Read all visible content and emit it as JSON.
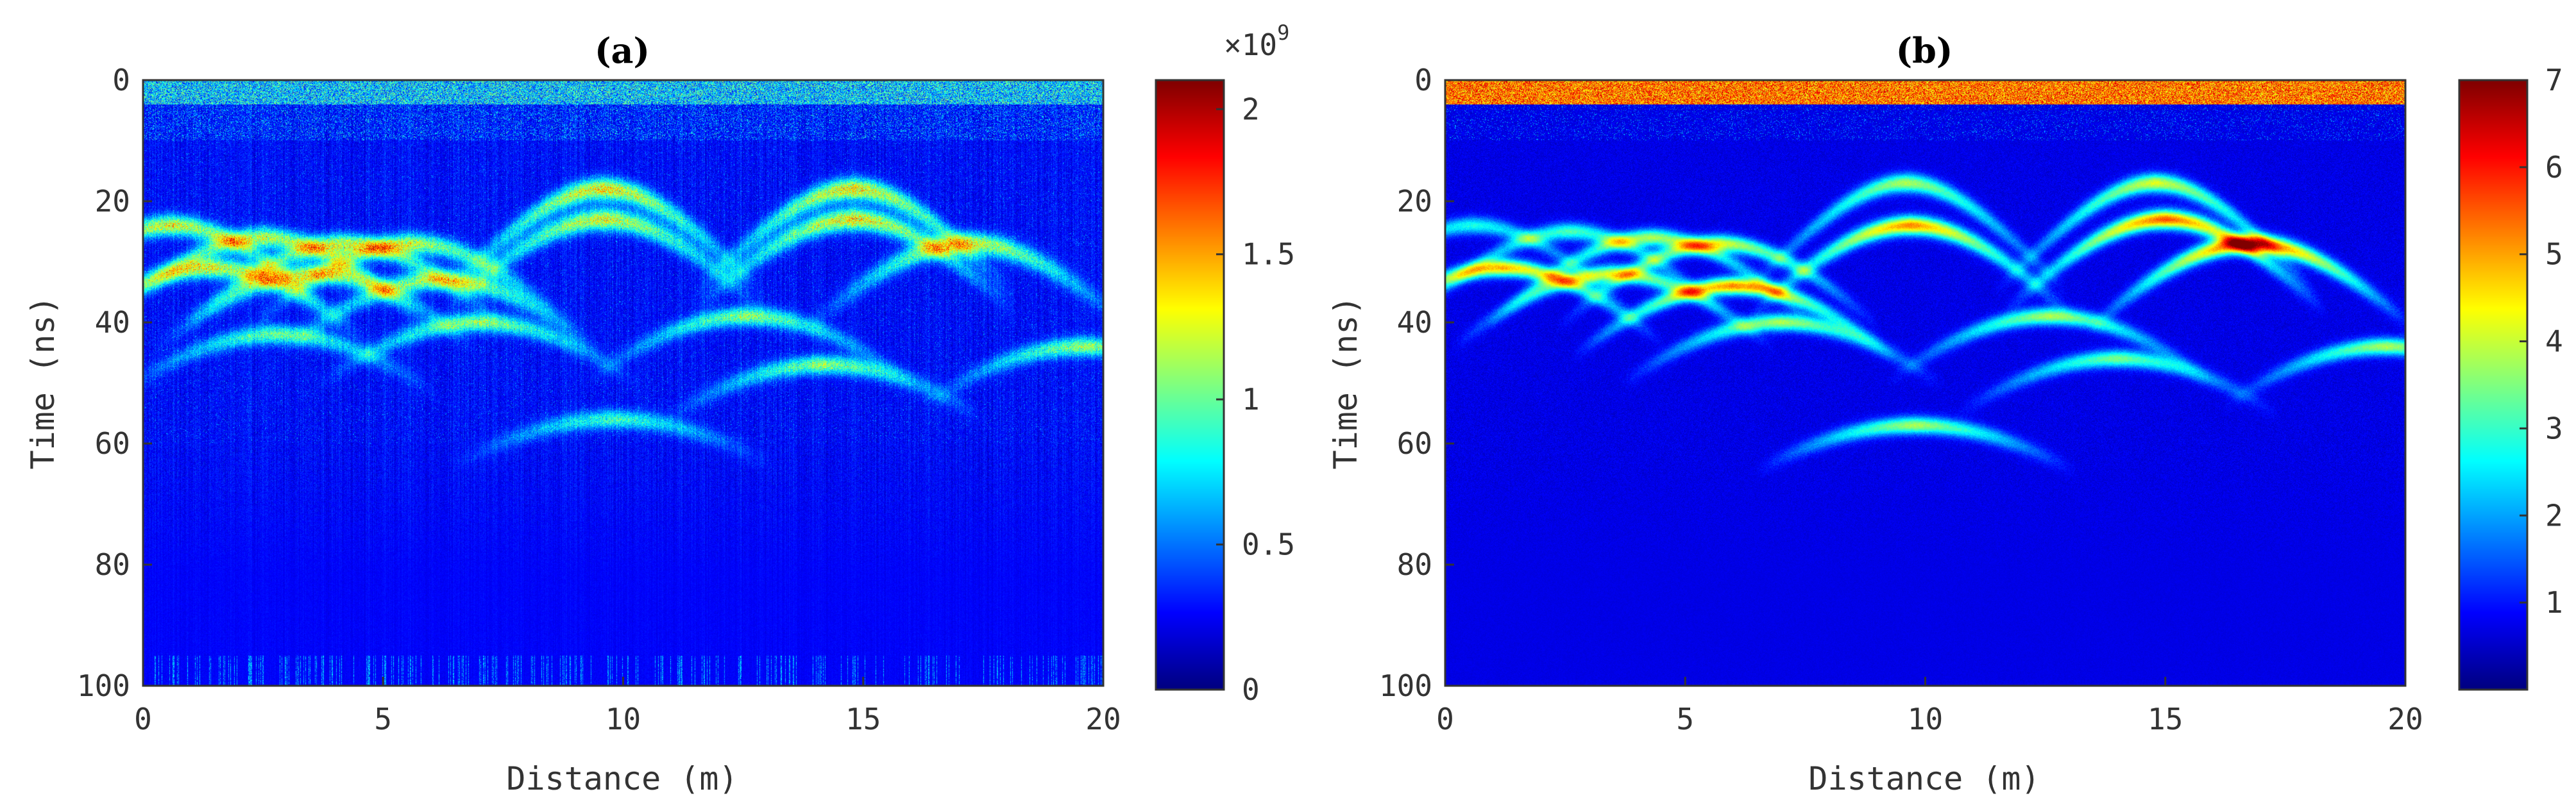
{
  "chart_data": [
    {
      "type": "heatmap",
      "panel": "a",
      "title": "(a)",
      "xlabel": "Distance (m)",
      "ylabel": "Time (ns)",
      "xlim": [
        0,
        20
      ],
      "ylim": [
        0,
        100
      ],
      "y_reversed": true,
      "xticks": [
        0,
        5,
        10,
        15,
        20
      ],
      "xtick_labels": [
        "0",
        "5",
        "10",
        "15",
        "20"
      ],
      "yticks": [
        0,
        20,
        40,
        60,
        80,
        100
      ],
      "ytick_labels": [
        "0",
        "20",
        "40",
        "60",
        "80",
        "100"
      ],
      "colorbar": {
        "colormap": "jet",
        "range": [
          0,
          2.1
        ],
        "ticks": [
          0,
          0.5,
          1,
          1.5,
          2
        ],
        "tick_labels": [
          "0",
          "0.5",
          "1",
          "1.5",
          "2"
        ],
        "exponent_base": "×10",
        "exponent_power": "9"
      },
      "background_level": 0.12,
      "noise_level": 0.18,
      "surface_band": {
        "t_max": 4,
        "level": 0.45
      },
      "texture": "speckled",
      "hyperbolas": [
        {
          "x0": 0.6,
          "t0": 24,
          "amp": 0.55,
          "width": 2.6
        },
        {
          "x0": 2.5,
          "t0": 26,
          "amp": 0.5,
          "width": 2.6
        },
        {
          "x0": 4.2,
          "t0": 27,
          "amp": 0.5,
          "width": 2.6
        },
        {
          "x0": 5.6,
          "t0": 27,
          "amp": 0.5,
          "width": 2.6
        },
        {
          "x0": 1.4,
          "t0": 31,
          "amp": 0.55,
          "width": 2.6
        },
        {
          "x0": 3.6,
          "t0": 32,
          "amp": 0.5,
          "width": 2.6
        },
        {
          "x0": 6.2,
          "t0": 33,
          "amp": 0.5,
          "width": 2.6
        },
        {
          "x0": 9.6,
          "t0": 18,
          "amp": 0.6,
          "width": 2.8
        },
        {
          "x0": 9.6,
          "t0": 23,
          "amp": 0.55,
          "width": 2.8
        },
        {
          "x0": 14.8,
          "t0": 18,
          "amp": 0.6,
          "width": 2.8
        },
        {
          "x0": 14.8,
          "t0": 23,
          "amp": 0.6,
          "width": 2.8
        },
        {
          "x0": 17.2,
          "t0": 27,
          "amp": 0.55,
          "width": 2.8
        },
        {
          "x0": 2.8,
          "t0": 42,
          "amp": 0.4,
          "width": 2.4
        },
        {
          "x0": 7.0,
          "t0": 40,
          "amp": 0.45,
          "width": 2.4
        },
        {
          "x0": 12.6,
          "t0": 39,
          "amp": 0.45,
          "width": 2.4
        },
        {
          "x0": 14.2,
          "t0": 47,
          "amp": 0.45,
          "width": 2.4
        },
        {
          "x0": 19.6,
          "t0": 44,
          "amp": 0.45,
          "width": 2.4
        },
        {
          "x0": 9.8,
          "t0": 56,
          "amp": 0.35,
          "width": 2.4
        }
      ]
    },
    {
      "type": "heatmap",
      "panel": "b",
      "title": "(b)",
      "xlabel": "Distance (m)",
      "ylabel": "Time (ns)",
      "xlim": [
        0,
        20
      ],
      "ylim": [
        0,
        100
      ],
      "y_reversed": true,
      "xticks": [
        0,
        5,
        10,
        15,
        20
      ],
      "xtick_labels": [
        "0",
        "5",
        "10",
        "15",
        "20"
      ],
      "yticks": [
        0,
        20,
        40,
        60,
        80,
        100
      ],
      "ytick_labels": [
        "0",
        "20",
        "40",
        "60",
        "80",
        "100"
      ],
      "colorbar": {
        "colormap": "jet",
        "range": [
          0,
          7
        ],
        "ticks": [
          1,
          2,
          3,
          4,
          5,
          6,
          7
        ],
        "tick_labels": [
          "1",
          "2",
          "3",
          "4",
          "5",
          "6",
          "7"
        ]
      },
      "background_level": 0.1,
      "noise_level": 0.08,
      "surface_band": {
        "t_max": 4,
        "level": 0.85
      },
      "texture": "smooth",
      "hyperbolas": [
        {
          "x0": 0.6,
          "t0": 24,
          "amp": 0.3,
          "width": 2.2
        },
        {
          "x0": 2.6,
          "t0": 25,
          "amp": 0.35,
          "width": 2.2
        },
        {
          "x0": 4.3,
          "t0": 26,
          "amp": 0.45,
          "width": 2.2
        },
        {
          "x0": 5.7,
          "t0": 27,
          "amp": 0.5,
          "width": 2.2
        },
        {
          "x0": 1.2,
          "t0": 31,
          "amp": 0.6,
          "width": 2.2
        },
        {
          "x0": 3.5,
          "t0": 32,
          "amp": 0.5,
          "width": 2.2
        },
        {
          "x0": 6.0,
          "t0": 34,
          "amp": 0.65,
          "width": 2.2
        },
        {
          "x0": 9.6,
          "t0": 17,
          "amp": 0.45,
          "width": 2.4
        },
        {
          "x0": 9.7,
          "t0": 24,
          "amp": 0.65,
          "width": 2.4
        },
        {
          "x0": 14.8,
          "t0": 17,
          "amp": 0.5,
          "width": 2.4
        },
        {
          "x0": 15.0,
          "t0": 23,
          "amp": 0.7,
          "width": 2.4
        },
        {
          "x0": 16.8,
          "t0": 27,
          "amp": 0.75,
          "width": 2.4
        },
        {
          "x0": 7.0,
          "t0": 40,
          "amp": 0.45,
          "width": 2.2
        },
        {
          "x0": 12.6,
          "t0": 39,
          "amp": 0.45,
          "width": 2.2
        },
        {
          "x0": 14.0,
          "t0": 46,
          "amp": 0.4,
          "width": 2.2
        },
        {
          "x0": 19.6,
          "t0": 44,
          "amp": 0.45,
          "width": 2.2
        },
        {
          "x0": 9.8,
          "t0": 57,
          "amp": 0.45,
          "width": 2.2
        }
      ]
    }
  ]
}
